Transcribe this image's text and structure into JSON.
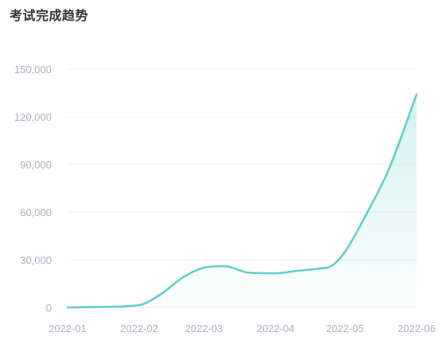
{
  "title": "考试完成趋势",
  "chart_data": {
    "type": "area",
    "title": "考试完成趋势",
    "xlabel": "",
    "ylabel": "",
    "ylim": [
      0,
      150000
    ],
    "yticks": [
      0,
      30000,
      60000,
      90000,
      120000,
      150000
    ],
    "ytick_labels": [
      "0",
      "30,000",
      "60,000",
      "90,000",
      "120,000",
      "150,000"
    ],
    "categories": [
      "2022-01",
      "2022-02",
      "2022-03",
      "2022-04",
      "2022-05",
      "2022-06"
    ],
    "x": [
      "2022-01-01",
      "2022-01-15",
      "2022-02-01",
      "2022-02-10",
      "2022-02-20",
      "2022-03-01",
      "2022-03-10",
      "2022-03-20",
      "2022-04-01",
      "2022-04-10",
      "2022-04-20",
      "2022-04-25",
      "2022-05-01",
      "2022-05-10",
      "2022-05-20",
      "2022-06-01"
    ],
    "values": [
      0,
      300,
      1500,
      8000,
      19000,
      25000,
      26000,
      22000,
      21500,
      23000,
      24500,
      26000,
      35000,
      58000,
      87000,
      134000
    ],
    "grid": true,
    "legend": "none",
    "colors": {
      "line": "#66cdc6",
      "area_top": "#66cdc6",
      "grid": "#f0f2f5",
      "axis_text": "#a7b0c3",
      "title": "#333333"
    }
  }
}
